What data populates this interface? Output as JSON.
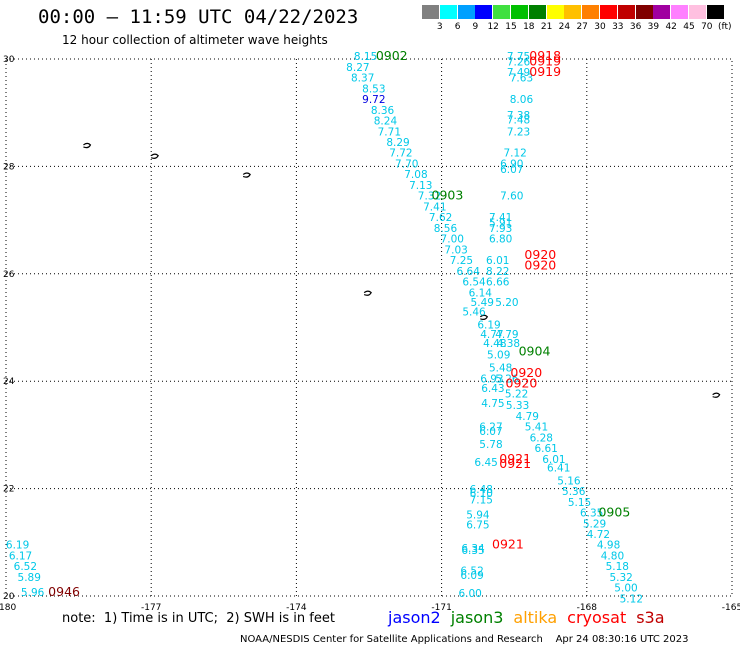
{
  "header": {
    "title": "00:00 – 11:59 UTC 04/22/2023",
    "subtitle": "12 hour collection of altimeter wave heights"
  },
  "colorbar": {
    "labels": [
      "3",
      "6",
      "9",
      "12",
      "15",
      "18",
      "21",
      "24",
      "27",
      "30",
      "33",
      "36",
      "39",
      "42",
      "45",
      "70"
    ],
    "colors": [
      "#808080",
      "#00ffff",
      "#00a0ff",
      "#0000ff",
      "#40e040",
      "#00c000",
      "#008000",
      "#ffff00",
      "#ffc000",
      "#ff8000",
      "#ff0000",
      "#c00000",
      "#800000",
      "#a000a0",
      "#ff80ff",
      "#ffc0e0",
      "#000000"
    ],
    "unit": "(ft)"
  },
  "axes": {
    "x_ticks": [
      "-180",
      "-177",
      "-174",
      "-171",
      "-168",
      "-165"
    ],
    "y_ticks": [
      "30",
      "28",
      "26",
      "24",
      "22",
      "20"
    ]
  },
  "wave_labels": [
    {
      "t": "8.15",
      "lon": -172.57,
      "lat": 29.98,
      "c": "cyan"
    },
    {
      "t": "8.27",
      "lon": -172.73,
      "lat": 29.78,
      "c": "cyan"
    },
    {
      "t": "8.37",
      "lon": -172.63,
      "lat": 29.58,
      "c": "cyan"
    },
    {
      "t": "8.53",
      "lon": -172.4,
      "lat": 29.38,
      "c": "cyan"
    },
    {
      "t": "9.72",
      "lon": -172.4,
      "lat": 29.18,
      "c": "blue"
    },
    {
      "t": "8.36",
      "lon": -172.22,
      "lat": 28.98,
      "c": "cyan"
    },
    {
      "t": "8.24",
      "lon": -172.16,
      "lat": 28.78,
      "c": "cyan"
    },
    {
      "t": "7.71",
      "lon": -172.08,
      "lat": 28.58,
      "c": "cyan"
    },
    {
      "t": "8.29",
      "lon": -171.9,
      "lat": 28.38,
      "c": "cyan"
    },
    {
      "t": "7.72",
      "lon": -171.84,
      "lat": 28.18,
      "c": "cyan"
    },
    {
      "t": "7.70",
      "lon": -171.72,
      "lat": 27.98,
      "c": "cyan"
    },
    {
      "t": "7.08",
      "lon": -171.53,
      "lat": 27.78,
      "c": "cyan"
    },
    {
      "t": "7.13",
      "lon": -171.43,
      "lat": 27.58,
      "c": "cyan"
    },
    {
      "t": "7.32",
      "lon": -171.25,
      "lat": 27.38,
      "c": "cyan"
    },
    {
      "t": "7.41",
      "lon": -171.14,
      "lat": 27.18,
      "c": "cyan"
    },
    {
      "t": "7.62",
      "lon": -171.02,
      "lat": 26.98,
      "c": "cyan"
    },
    {
      "t": "8.56",
      "lon": -170.92,
      "lat": 26.78,
      "c": "cyan"
    },
    {
      "t": "7.00",
      "lon": -170.78,
      "lat": 26.58,
      "c": "cyan"
    },
    {
      "t": "7.03",
      "lon": -170.7,
      "lat": 26.38,
      "c": "cyan"
    },
    {
      "t": "7.25",
      "lon": -170.59,
      "lat": 26.18,
      "c": "cyan"
    },
    {
      "t": "6.64",
      "lon": -170.45,
      "lat": 25.98,
      "c": "cyan"
    },
    {
      "t": "6.54",
      "lon": -170.33,
      "lat": 25.78,
      "c": "cyan"
    },
    {
      "t": "6.14",
      "lon": -170.2,
      "lat": 25.58,
      "c": "cyan"
    },
    {
      "t": "5.49",
      "lon": -170.16,
      "lat": 25.4,
      "c": "cyan"
    },
    {
      "t": "5.20",
      "lon": -169.65,
      "lat": 25.4,
      "c": "cyan"
    },
    {
      "t": "5.46",
      "lon": -170.33,
      "lat": 25.22,
      "c": "cyan"
    },
    {
      "t": "6.19",
      "lon": -170.02,
      "lat": 24.98,
      "c": "cyan"
    },
    {
      "t": "4.77",
      "lon": -169.96,
      "lat": 24.8,
      "c": "cyan"
    },
    {
      "t": "4.79",
      "lon": -169.65,
      "lat": 24.8,
      "c": "cyan"
    },
    {
      "t": "4.48",
      "lon": -169.9,
      "lat": 24.64,
      "c": "cyan"
    },
    {
      "t": "4.38",
      "lon": -169.62,
      "lat": 24.64,
      "c": "cyan"
    },
    {
      "t": "5.09",
      "lon": -169.82,
      "lat": 24.42,
      "c": "cyan"
    },
    {
      "t": "5.48",
      "lon": -169.78,
      "lat": 24.18,
      "c": "cyan"
    },
    {
      "t": "6.93",
      "lon": -169.96,
      "lat": 23.98,
      "c": "cyan"
    },
    {
      "t": "5.26",
      "lon": -169.65,
      "lat": 23.98,
      "c": "cyan"
    },
    {
      "t": "6.43",
      "lon": -169.94,
      "lat": 23.8,
      "c": "cyan"
    },
    {
      "t": "5.22",
      "lon": -169.45,
      "lat": 23.7,
      "c": "cyan"
    },
    {
      "t": "4.75",
      "lon": -169.94,
      "lat": 23.52,
      "c": "cyan"
    },
    {
      "t": "5.33",
      "lon": -169.43,
      "lat": 23.48,
      "c": "cyan"
    },
    {
      "t": "4.79",
      "lon": -169.23,
      "lat": 23.28,
      "c": "cyan"
    },
    {
      "t": "6.27",
      "lon": -169.98,
      "lat": 23.08,
      "c": "cyan"
    },
    {
      "t": "6.07",
      "lon": -169.98,
      "lat": 23.0,
      "c": "cyan"
    },
    {
      "t": "5.41",
      "lon": -169.04,
      "lat": 23.08,
      "c": "cyan"
    },
    {
      "t": "6.28",
      "lon": -168.94,
      "lat": 22.88,
      "c": "cyan"
    },
    {
      "t": "5.78",
      "lon": -169.98,
      "lat": 22.76,
      "c": "cyan"
    },
    {
      "t": "6.61",
      "lon": -168.84,
      "lat": 22.68,
      "c": "cyan"
    },
    {
      "t": "6.01",
      "lon": -168.68,
      "lat": 22.48,
      "c": "cyan"
    },
    {
      "t": "6.45",
      "lon": -170.08,
      "lat": 22.42,
      "c": "cyan"
    },
    {
      "t": "6.41",
      "lon": -168.58,
      "lat": 22.32,
      "c": "cyan"
    },
    {
      "t": "5.16",
      "lon": -168.37,
      "lat": 22.08,
      "c": "cyan"
    },
    {
      "t": "5.36",
      "lon": -168.27,
      "lat": 21.88,
      "c": "cyan"
    },
    {
      "t": "5.15",
      "lon": -168.15,
      "lat": 21.68,
      "c": "cyan"
    },
    {
      "t": "6.48",
      "lon": -170.18,
      "lat": 21.92,
      "c": "cyan"
    },
    {
      "t": "6.10",
      "lon": -170.18,
      "lat": 21.84,
      "c": "cyan"
    },
    {
      "t": "7.15",
      "lon": -170.18,
      "lat": 21.72,
      "c": "cyan"
    },
    {
      "t": "6.35",
      "lon": -167.9,
      "lat": 21.48,
      "c": "cyan"
    },
    {
      "t": "5.94",
      "lon": -170.25,
      "lat": 21.44,
      "c": "cyan"
    },
    {
      "t": "5.29",
      "lon": -167.84,
      "lat": 21.28,
      "c": "cyan"
    },
    {
      "t": "6.75",
      "lon": -170.25,
      "lat": 21.26,
      "c": "cyan"
    },
    {
      "t": "4.72",
      "lon": -167.76,
      "lat": 21.08,
      "c": "cyan"
    },
    {
      "t": "4.98",
      "lon": -167.55,
      "lat": 20.88,
      "c": "cyan"
    },
    {
      "t": "6.34",
      "lon": -170.35,
      "lat": 20.82,
      "c": "cyan"
    },
    {
      "t": "6.35",
      "lon": -170.35,
      "lat": 20.78,
      "c": "cyan"
    },
    {
      "t": "4.80",
      "lon": -167.47,
      "lat": 20.68,
      "c": "cyan"
    },
    {
      "t": "5.18",
      "lon": -167.37,
      "lat": 20.48,
      "c": "cyan"
    },
    {
      "t": "6.52",
      "lon": -170.37,
      "lat": 20.4,
      "c": "cyan"
    },
    {
      "t": "6.09",
      "lon": -170.37,
      "lat": 20.32,
      "c": "cyan"
    },
    {
      "t": "5.32",
      "lon": -167.29,
      "lat": 20.28,
      "c": "cyan"
    },
    {
      "t": "5.00",
      "lon": -167.19,
      "lat": 20.08,
      "c": "cyan"
    },
    {
      "t": "6.00",
      "lon": -170.41,
      "lat": 19.98,
      "c": "cyan"
    },
    {
      "t": "5.12",
      "lon": -167.08,
      "lat": 19.88,
      "c": "cyan"
    },
    {
      "t": "7.75",
      "lon": -169.41,
      "lat": 29.98,
      "c": "cyan"
    },
    {
      "t": "7.26",
      "lon": -169.41,
      "lat": 29.88,
      "c": "cyan"
    },
    {
      "t": "7.49",
      "lon": -169.41,
      "lat": 29.68,
      "c": "cyan"
    },
    {
      "t": "7.63",
      "lon": -169.35,
      "lat": 29.58,
      "c": "cyan"
    },
    {
      "t": "8.06",
      "lon": -169.35,
      "lat": 29.18,
      "c": "cyan"
    },
    {
      "t": "7.38",
      "lon": -169.41,
      "lat": 28.88,
      "c": "cyan"
    },
    {
      "t": "7.48",
      "lon": -169.41,
      "lat": 28.8,
      "c": "cyan"
    },
    {
      "t": "7.23",
      "lon": -169.41,
      "lat": 28.58,
      "c": "cyan"
    },
    {
      "t": "7.12",
      "lon": -169.48,
      "lat": 28.18,
      "c": "cyan"
    },
    {
      "t": "6.90",
      "lon": -169.55,
      "lat": 27.98,
      "c": "cyan"
    },
    {
      "t": "6.07",
      "lon": -169.55,
      "lat": 27.88,
      "c": "cyan"
    },
    {
      "t": "7.60",
      "lon": -169.55,
      "lat": 27.38,
      "c": "cyan"
    },
    {
      "t": "7.41",
      "lon": -169.78,
      "lat": 26.98,
      "c": "cyan"
    },
    {
      "t": "5.91",
      "lon": -169.78,
      "lat": 26.88,
      "c": "cyan"
    },
    {
      "t": "7.93",
      "lon": -169.78,
      "lat": 26.78,
      "c": "cyan"
    },
    {
      "t": "6.80",
      "lon": -169.78,
      "lat": 26.58,
      "c": "cyan"
    },
    {
      "t": "6.01",
      "lon": -169.84,
      "lat": 26.18,
      "c": "cyan"
    },
    {
      "t": "8.22",
      "lon": -169.84,
      "lat": 25.98,
      "c": "cyan"
    },
    {
      "t": "6.66",
      "lon": -169.84,
      "lat": 25.78,
      "c": "cyan"
    },
    {
      "t": "6.19",
      "lon": -179.76,
      "lat": 20.88,
      "c": "cyan"
    },
    {
      "t": "6.17",
      "lon": -179.7,
      "lat": 20.68,
      "c": "cyan"
    },
    {
      "t": "6.52",
      "lon": -179.6,
      "lat": 20.48,
      "c": "cyan"
    },
    {
      "t": "5.89",
      "lon": -179.52,
      "lat": 20.28,
      "c": "cyan"
    },
    {
      "t": "5.96",
      "lon": -179.45,
      "lat": 20.0,
      "c": "cyan"
    }
  ],
  "time_labels": [
    {
      "t": "0902",
      "lon": -172.03,
      "lat": 29.98,
      "c": "green"
    },
    {
      "t": "0903",
      "lon": -170.88,
      "lat": 27.38,
      "c": "green"
    },
    {
      "t": "0904",
      "lon": -169.08,
      "lat": 24.48,
      "c": "green"
    },
    {
      "t": "0905",
      "lon": -167.43,
      "lat": 21.48,
      "c": "green"
    },
    {
      "t": "0918",
      "lon": -168.86,
      "lat": 29.98,
      "c": "red"
    },
    {
      "t": "0919",
      "lon": -168.86,
      "lat": 29.88,
      "c": "red"
    },
    {
      "t": "0919",
      "lon": -168.86,
      "lat": 29.68,
      "c": "red"
    },
    {
      "t": "0920",
      "lon": -168.96,
      "lat": 26.28,
      "c": "red"
    },
    {
      "t": "0920",
      "lon": -168.96,
      "lat": 26.08,
      "c": "red"
    },
    {
      "t": "0920",
      "lon": -169.25,
      "lat": 24.08,
      "c": "red"
    },
    {
      "t": "0920",
      "lon": -169.35,
      "lat": 23.88,
      "c": "red"
    },
    {
      "t": "0921",
      "lon": -169.48,
      "lat": 22.48,
      "c": "red"
    },
    {
      "t": "0921",
      "lon": -169.48,
      "lat": 22.38,
      "c": "red"
    },
    {
      "t": "0921",
      "lon": -169.63,
      "lat": 20.88,
      "c": "red"
    },
    {
      "t": "0946",
      "lon": -178.8,
      "lat": 20.0,
      "c": "maroon"
    }
  ],
  "footer": {
    "note": "note:  1) Time is in UTC;  2) SWH is in feet",
    "legend": [
      {
        "label": "jason2",
        "color": "#0000ff"
      },
      {
        "label": "jason3",
        "color": "#008000"
      },
      {
        "label": "altika",
        "color": "#ffa000"
      },
      {
        "label": "cryosat",
        "color": "#ff0000"
      },
      {
        "label": "s3a",
        "color": "#c00000"
      }
    ],
    "credit": "NOAA/NESDIS Center for Satellite Applications and Research    Apr 24 08:30:16 UTC 2023"
  }
}
